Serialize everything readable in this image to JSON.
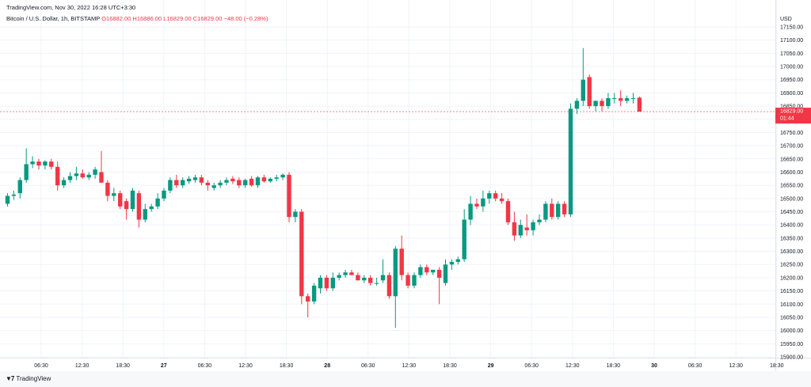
{
  "header": {
    "date_line": "TradingView.com, Nov 30, 2022 16:28 UTC+3:30",
    "symbol": "Bitcoin / U.S. Dollar, 1h, BITSTAMP",
    "ohlc": {
      "open": "O16882.00",
      "high": "H16886.00",
      "low": "L16829.00",
      "close": "C16829.00",
      "change": "−48.00 (−0.28%)"
    }
  },
  "price_scale": {
    "currency": "USD",
    "last_price": "16829.00",
    "countdown": "01:44"
  },
  "footer": {
    "logo_text": "TradingView"
  },
  "colors": {
    "up": "#089981",
    "down": "#f23645",
    "grid": "#f0f3fa"
  },
  "chart_data": {
    "type": "candlestick",
    "title": "Bitcoin / U.S. Dollar, 1h, BITSTAMP",
    "ylim": [
      15900,
      17150
    ],
    "y_ticks": [
      17150,
      17100,
      17050,
      17000,
      16950,
      16900,
      16850,
      16800,
      16750,
      16700,
      16650,
      16600,
      16550,
      16500,
      16450,
      16400,
      16350,
      16300,
      16250,
      16200,
      16150,
      16100,
      16050,
      16000,
      15950,
      15900
    ],
    "x_ticks": [
      "06:30",
      "12:30",
      "18:30",
      "27",
      "06:30",
      "12:30",
      "18:30",
      "28",
      "06:30",
      "12:30",
      "18:30",
      "29",
      "06:30",
      "12:30",
      "18:30",
      "30",
      "06:30",
      "12:30",
      "18:30"
    ],
    "last_price": 16829,
    "candles": [
      {
        "o": 16480,
        "h": 16520,
        "l": 16470,
        "c": 16510
      },
      {
        "o": 16510,
        "h": 16530,
        "l": 16495,
        "c": 16515
      },
      {
        "o": 16520,
        "h": 16580,
        "l": 16500,
        "c": 16570
      },
      {
        "o": 16570,
        "h": 16690,
        "l": 16560,
        "c": 16630
      },
      {
        "o": 16630,
        "h": 16660,
        "l": 16615,
        "c": 16640
      },
      {
        "o": 16640,
        "h": 16650,
        "l": 16610,
        "c": 16625
      },
      {
        "o": 16625,
        "h": 16645,
        "l": 16610,
        "c": 16640
      },
      {
        "o": 16640,
        "h": 16650,
        "l": 16610,
        "c": 16620
      },
      {
        "o": 16620,
        "h": 16640,
        "l": 16530,
        "c": 16550
      },
      {
        "o": 16550,
        "h": 16580,
        "l": 16540,
        "c": 16570
      },
      {
        "o": 16570,
        "h": 16600,
        "l": 16560,
        "c": 16585
      },
      {
        "o": 16585,
        "h": 16620,
        "l": 16570,
        "c": 16595
      },
      {
        "o": 16595,
        "h": 16610,
        "l": 16575,
        "c": 16580
      },
      {
        "o": 16580,
        "h": 16600,
        "l": 16570,
        "c": 16590
      },
      {
        "o": 16590,
        "h": 16620,
        "l": 16575,
        "c": 16610
      },
      {
        "o": 16600,
        "h": 16680,
        "l": 16570,
        "c": 16560
      },
      {
        "o": 16560,
        "h": 16570,
        "l": 16490,
        "c": 16510
      },
      {
        "o": 16510,
        "h": 16540,
        "l": 16490,
        "c": 16520
      },
      {
        "o": 16520,
        "h": 16530,
        "l": 16460,
        "c": 16470
      },
      {
        "o": 16490,
        "h": 16500,
        "l": 16420,
        "c": 16460
      },
      {
        "o": 16460,
        "h": 16540,
        "l": 16450,
        "c": 16530
      },
      {
        "o": 16520,
        "h": 16530,
        "l": 16390,
        "c": 16420
      },
      {
        "o": 16420,
        "h": 16480,
        "l": 16410,
        "c": 16460
      },
      {
        "o": 16460,
        "h": 16480,
        "l": 16450,
        "c": 16470
      },
      {
        "o": 16470,
        "h": 16520,
        "l": 16460,
        "c": 16500
      },
      {
        "o": 16500,
        "h": 16540,
        "l": 16490,
        "c": 16530
      },
      {
        "o": 16530,
        "h": 16580,
        "l": 16520,
        "c": 16570
      },
      {
        "o": 16570,
        "h": 16590,
        "l": 16540,
        "c": 16550
      },
      {
        "o": 16550,
        "h": 16580,
        "l": 16540,
        "c": 16570
      },
      {
        "o": 16565,
        "h": 16585,
        "l": 16555,
        "c": 16575
      },
      {
        "o": 16570,
        "h": 16590,
        "l": 16560,
        "c": 16580
      },
      {
        "o": 16580,
        "h": 16590,
        "l": 16550,
        "c": 16560
      },
      {
        "o": 16560,
        "h": 16570,
        "l": 16530,
        "c": 16550
      },
      {
        "o": 16540,
        "h": 16560,
        "l": 16530,
        "c": 16550
      },
      {
        "o": 16550,
        "h": 16570,
        "l": 16540,
        "c": 16560
      },
      {
        "o": 16560,
        "h": 16580,
        "l": 16550,
        "c": 16570
      },
      {
        "o": 16575,
        "h": 16585,
        "l": 16555,
        "c": 16565
      },
      {
        "o": 16570,
        "h": 16580,
        "l": 16540,
        "c": 16550
      },
      {
        "o": 16550,
        "h": 16575,
        "l": 16540,
        "c": 16570
      },
      {
        "o": 16575,
        "h": 16585,
        "l": 16545,
        "c": 16550
      },
      {
        "o": 16550,
        "h": 16585,
        "l": 16540,
        "c": 16580
      },
      {
        "o": 16580,
        "h": 16590,
        "l": 16560,
        "c": 16565
      },
      {
        "o": 16565,
        "h": 16580,
        "l": 16560,
        "c": 16575
      },
      {
        "o": 16575,
        "h": 16590,
        "l": 16565,
        "c": 16580
      },
      {
        "o": 16580,
        "h": 16595,
        "l": 16570,
        "c": 16590
      },
      {
        "o": 16590,
        "h": 16600,
        "l": 16410,
        "c": 16430
      },
      {
        "o": 16430,
        "h": 16460,
        "l": 16410,
        "c": 16450
      },
      {
        "o": 16450,
        "h": 16460,
        "l": 16100,
        "c": 16130
      },
      {
        "o": 16130,
        "h": 16140,
        "l": 16050,
        "c": 16110
      },
      {
        "o": 16110,
        "h": 16180,
        "l": 16100,
        "c": 16170
      },
      {
        "o": 16160,
        "h": 16210,
        "l": 16140,
        "c": 16200
      },
      {
        "o": 16200,
        "h": 16210,
        "l": 16150,
        "c": 16160
      },
      {
        "o": 16160,
        "h": 16220,
        "l": 16150,
        "c": 16200
      },
      {
        "o": 16200,
        "h": 16220,
        "l": 16190,
        "c": 16210
      },
      {
        "o": 16210,
        "h": 16230,
        "l": 16200,
        "c": 16220
      },
      {
        "o": 16220,
        "h": 16230,
        "l": 16210,
        "c": 16210
      },
      {
        "o": 16210,
        "h": 16220,
        "l": 16190,
        "c": 16190
      },
      {
        "o": 16190,
        "h": 16210,
        "l": 16180,
        "c": 16200
      },
      {
        "o": 16200,
        "h": 16210,
        "l": 16170,
        "c": 16180
      },
      {
        "o": 16180,
        "h": 16200,
        "l": 16170,
        "c": 16180
      },
      {
        "o": 16190,
        "h": 16270,
        "l": 16180,
        "c": 16210
      },
      {
        "o": 16210,
        "h": 16220,
        "l": 16120,
        "c": 16130
      },
      {
        "o": 16130,
        "h": 16320,
        "l": 16010,
        "c": 16310
      },
      {
        "o": 16310,
        "h": 16360,
        "l": 16190,
        "c": 16210
      },
      {
        "o": 16210,
        "h": 16220,
        "l": 16160,
        "c": 16170
      },
      {
        "o": 16170,
        "h": 16220,
        "l": 16160,
        "c": 16210
      },
      {
        "o": 16210,
        "h": 16250,
        "l": 16200,
        "c": 16240
      },
      {
        "o": 16240,
        "h": 16250,
        "l": 16210,
        "c": 16220
      },
      {
        "o": 16220,
        "h": 16230,
        "l": 16210,
        "c": 16230
      },
      {
        "o": 16230,
        "h": 16240,
        "l": 16100,
        "c": 16200
      },
      {
        "o": 16180,
        "h": 16270,
        "l": 16170,
        "c": 16250
      },
      {
        "o": 16250,
        "h": 16270,
        "l": 16230,
        "c": 16260
      },
      {
        "o": 16260,
        "h": 16280,
        "l": 16250,
        "c": 16270
      },
      {
        "o": 16270,
        "h": 16460,
        "l": 16260,
        "c": 16420
      },
      {
        "o": 16420,
        "h": 16510,
        "l": 16400,
        "c": 16480
      },
      {
        "o": 16480,
        "h": 16500,
        "l": 16460,
        "c": 16470
      },
      {
        "o": 16470,
        "h": 16530,
        "l": 16450,
        "c": 16500
      },
      {
        "o": 16500,
        "h": 16530,
        "l": 16480,
        "c": 16520
      },
      {
        "o": 16520,
        "h": 16530,
        "l": 16490,
        "c": 16500
      },
      {
        "o": 16500,
        "h": 16520,
        "l": 16480,
        "c": 16490
      },
      {
        "o": 16490,
        "h": 16500,
        "l": 16400,
        "c": 16410
      },
      {
        "o": 16410,
        "h": 16450,
        "l": 16340,
        "c": 16360
      },
      {
        "o": 16360,
        "h": 16420,
        "l": 16350,
        "c": 16400
      },
      {
        "o": 16390,
        "h": 16440,
        "l": 16360,
        "c": 16380
      },
      {
        "o": 16380,
        "h": 16420,
        "l": 16360,
        "c": 16410
      },
      {
        "o": 16410,
        "h": 16440,
        "l": 16400,
        "c": 16420
      },
      {
        "o": 16420,
        "h": 16490,
        "l": 16410,
        "c": 16480
      },
      {
        "o": 16480,
        "h": 16500,
        "l": 16420,
        "c": 16430
      },
      {
        "o": 16430,
        "h": 16490,
        "l": 16420,
        "c": 16480
      },
      {
        "o": 16480,
        "h": 16490,
        "l": 16430,
        "c": 16440
      },
      {
        "o": 16440,
        "h": 16860,
        "l": 16430,
        "c": 16840
      },
      {
        "o": 16840,
        "h": 16880,
        "l": 16820,
        "c": 16870
      },
      {
        "o": 16870,
        "h": 17070,
        "l": 16850,
        "c": 16950
      },
      {
        "o": 16960,
        "h": 16970,
        "l": 16840,
        "c": 16850
      },
      {
        "o": 16850,
        "h": 16870,
        "l": 16830,
        "c": 16870
      },
      {
        "o": 16870,
        "h": 16880,
        "l": 16830,
        "c": 16850
      },
      {
        "o": 16850,
        "h": 16900,
        "l": 16840,
        "c": 16880
      },
      {
        "o": 16880,
        "h": 16900,
        "l": 16860,
        "c": 16880
      },
      {
        "o": 16880,
        "h": 16910,
        "l": 16850,
        "c": 16870
      },
      {
        "o": 16870,
        "h": 16890,
        "l": 16860,
        "c": 16880
      },
      {
        "o": 16880,
        "h": 16900,
        "l": 16860,
        "c": 16880
      },
      {
        "o": 16882,
        "h": 16886,
        "l": 16829,
        "c": 16829
      }
    ]
  }
}
